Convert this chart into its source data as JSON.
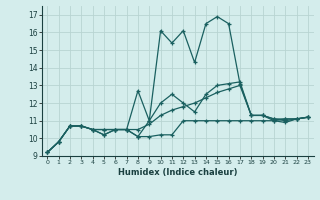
{
  "title": "",
  "xlabel": "Humidex (Indice chaleur)",
  "ylabel": "",
  "bg_color": "#d4edec",
  "grid_color": "#b8d4d2",
  "line_color": "#1a6060",
  "xlim": [
    -0.5,
    23.5
  ],
  "ylim": [
    9,
    17.5
  ],
  "yticks": [
    9,
    10,
    11,
    12,
    13,
    14,
    15,
    16,
    17
  ],
  "xticks": [
    0,
    1,
    2,
    3,
    4,
    5,
    6,
    7,
    8,
    9,
    10,
    11,
    12,
    13,
    14,
    15,
    16,
    17,
    18,
    19,
    20,
    21,
    22,
    23
  ],
  "series": [
    [
      9.2,
      9.8,
      10.7,
      10.7,
      10.5,
      10.2,
      10.5,
      10.5,
      10.1,
      10.1,
      10.2,
      10.2,
      11.0,
      11.0,
      11.0,
      11.0,
      11.0,
      11.0,
      11.0,
      11.0,
      11.0,
      11.1,
      11.1,
      11.2
    ],
    [
      9.2,
      9.8,
      10.7,
      10.7,
      10.5,
      10.5,
      10.5,
      10.5,
      12.7,
      11.0,
      16.1,
      15.4,
      16.1,
      14.3,
      16.5,
      16.9,
      16.5,
      13.1,
      11.3,
      11.3,
      11.0,
      10.9,
      11.1,
      11.2
    ],
    [
      9.2,
      9.8,
      10.7,
      10.7,
      10.5,
      10.2,
      10.5,
      10.5,
      10.1,
      11.0,
      12.0,
      12.5,
      12.0,
      11.5,
      12.5,
      13.0,
      13.1,
      13.2,
      11.3,
      11.3,
      11.1,
      11.1,
      11.1,
      11.2
    ],
    [
      9.2,
      9.8,
      10.7,
      10.7,
      10.5,
      10.5,
      10.5,
      10.5,
      10.5,
      10.8,
      11.3,
      11.6,
      11.8,
      12.0,
      12.3,
      12.6,
      12.8,
      13.0,
      11.3,
      11.3,
      11.1,
      11.0,
      11.1,
      11.2
    ]
  ]
}
